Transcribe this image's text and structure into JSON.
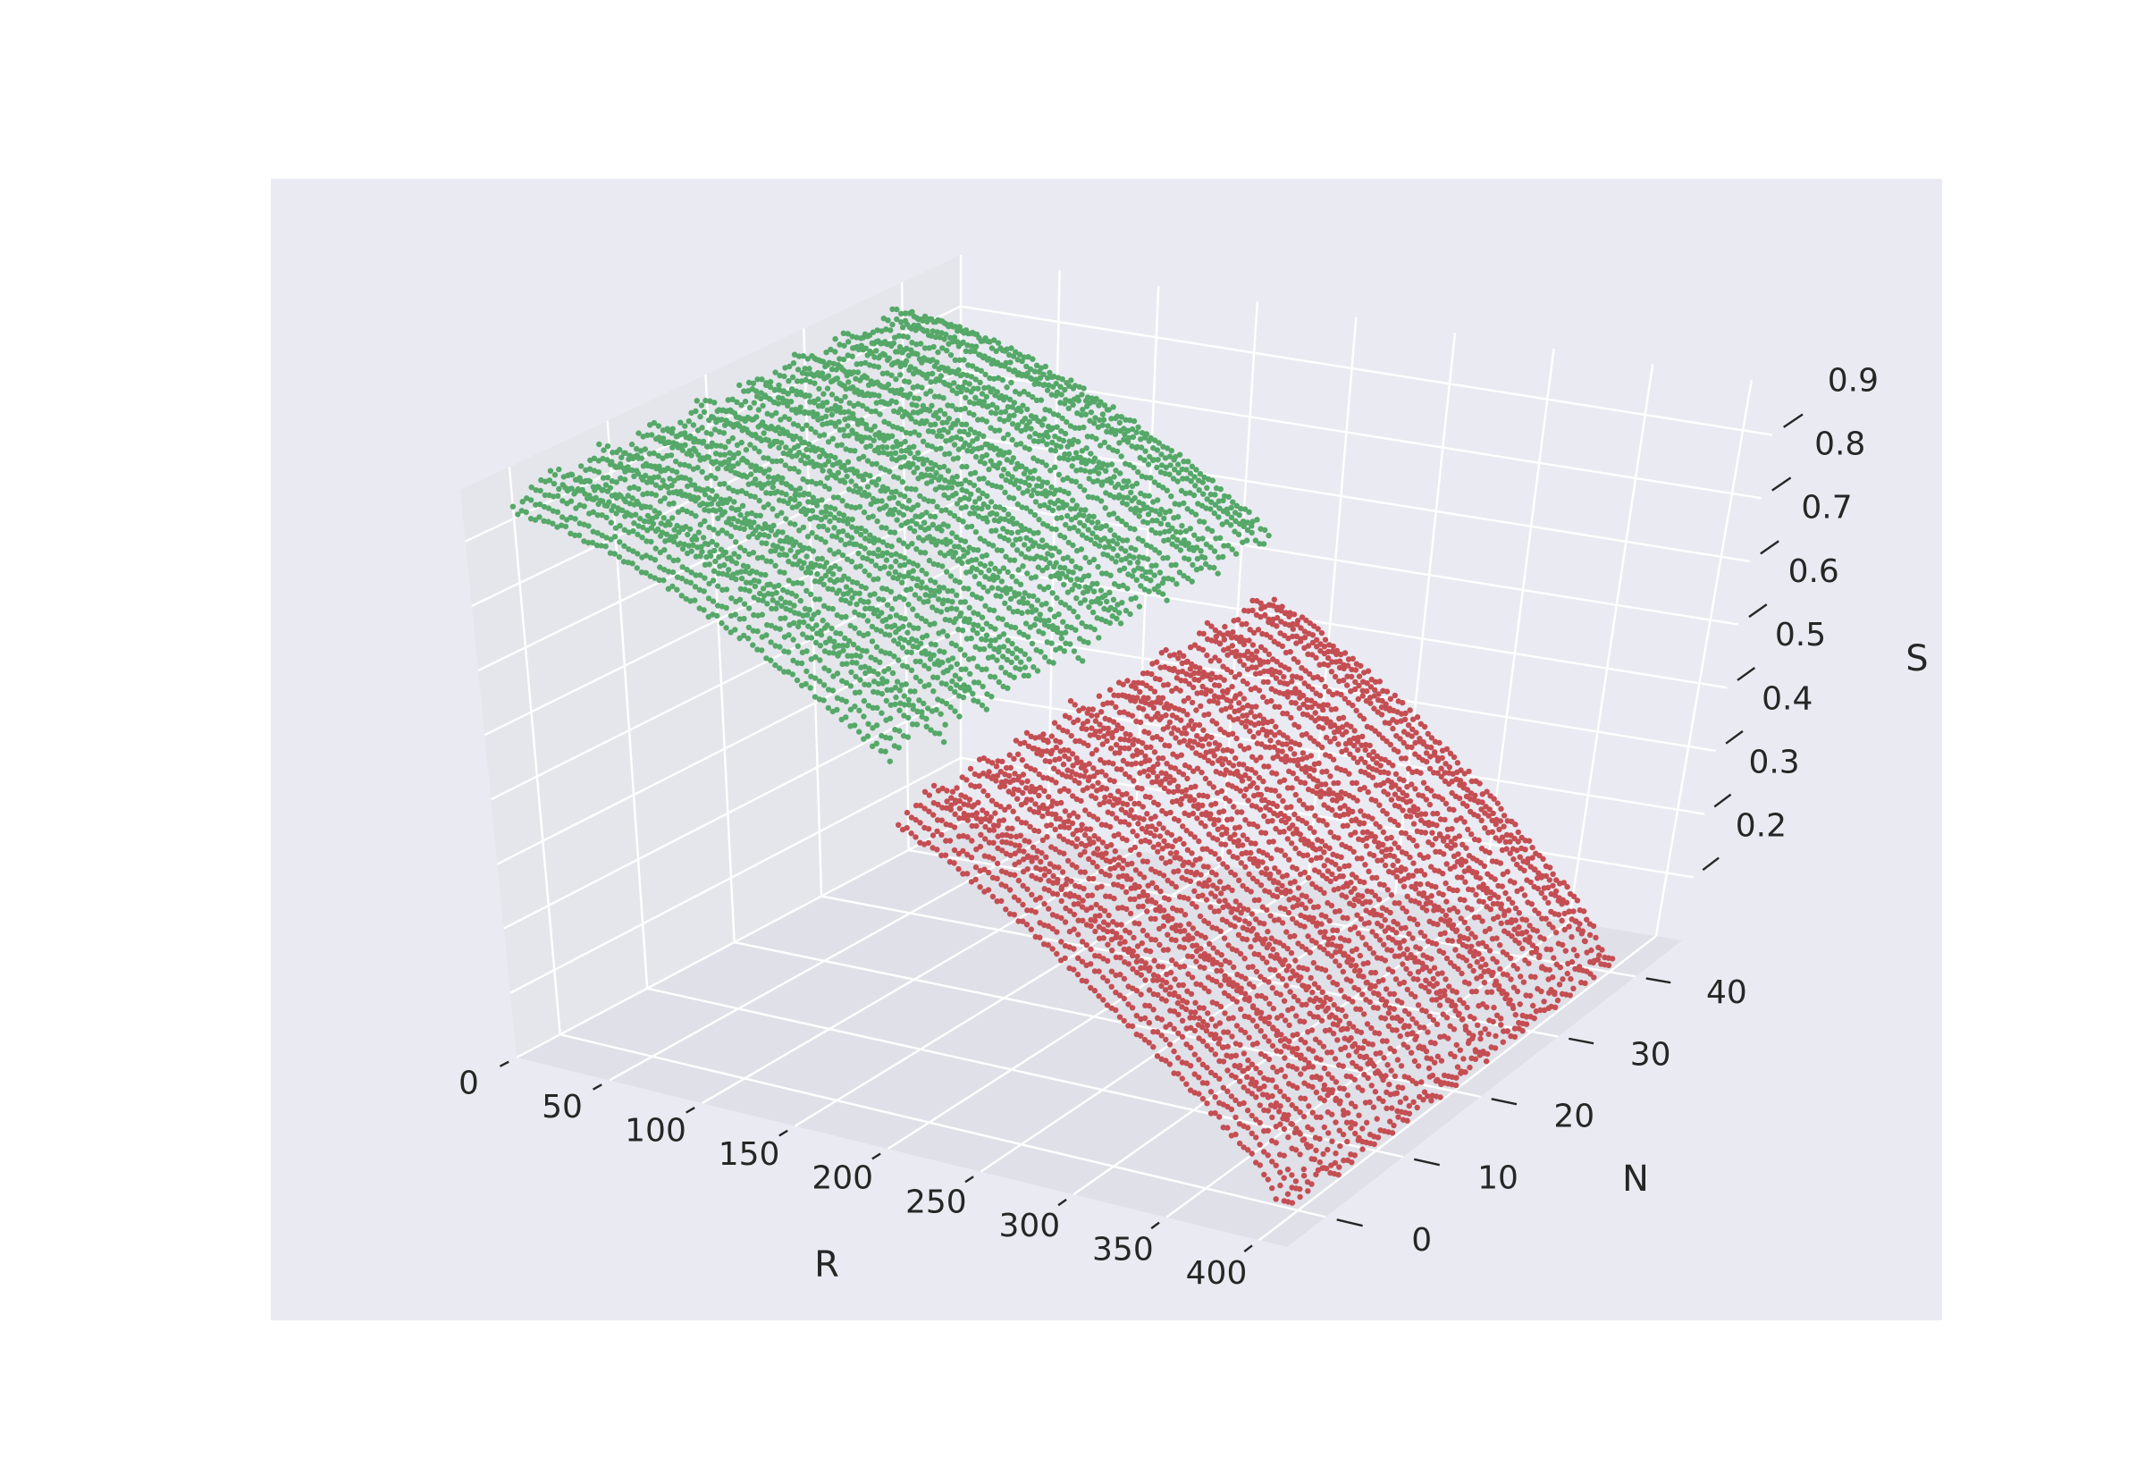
{
  "chart_data": {
    "type": "scatter",
    "projection": "3d",
    "xlabel": "R",
    "ylabel": "N",
    "zlabel": "S",
    "xlim": [
      0,
      415
    ],
    "ylim": [
      -5,
      46
    ],
    "zlim": [
      0.1,
      0.98
    ],
    "x_ticks": [
      "0",
      "50",
      "100",
      "150",
      "200",
      "250",
      "300",
      "350",
      "400"
    ],
    "y_ticks": [
      "0",
      "10",
      "20",
      "30",
      "40"
    ],
    "z_ticks": [
      "0.2",
      "0.3",
      "0.4",
      "0.5",
      "0.6",
      "0.7",
      "0.8",
      "0.9"
    ],
    "grid": true,
    "legend": false,
    "colors": {
      "green": "#55a868",
      "red": "#c44e52",
      "pane_back": "#eaeaf2",
      "pane_side": "#e5e5ec",
      "pane_floor": "#e0e0e8",
      "grid": "#ffffff",
      "text": "#262626"
    },
    "n_values": [
      0,
      1,
      2,
      3,
      4,
      5,
      6,
      7,
      8,
      9,
      10,
      11,
      12,
      13,
      14,
      15,
      16,
      17,
      18,
      19,
      20,
      21,
      22,
      23,
      24,
      25,
      26,
      27,
      28,
      29,
      30,
      31,
      32,
      33,
      34,
      35,
      36,
      37,
      38,
      39,
      40,
      41
    ],
    "series": [
      {
        "color": "green",
        "r_range": [
          0,
          190
        ],
        "s_range": [
          0.93,
          0.68
        ]
      },
      {
        "color": "red",
        "r_range": [
          190,
          400
        ],
        "s_range": [
          0.58,
          0.12
        ]
      }
    ]
  }
}
